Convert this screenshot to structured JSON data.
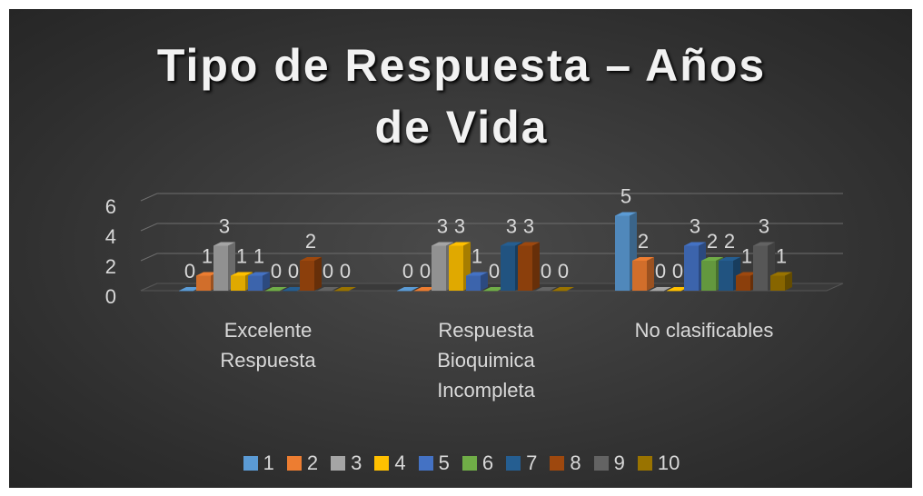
{
  "chart_data": {
    "type": "bar3d",
    "title": "Tipo de Respuesta – Años de Vida",
    "categories": [
      "Excelente Respuesta",
      "Respuesta Bioquimica Incompleta",
      "No clasificables"
    ],
    "series": [
      {
        "name": "1",
        "color": "#5b9bd5",
        "values": [
          0,
          0,
          5
        ]
      },
      {
        "name": "2",
        "color": "#ed7d31",
        "values": [
          1,
          0,
          2
        ]
      },
      {
        "name": "3",
        "color": "#a5a5a5",
        "values": [
          3,
          3,
          0
        ]
      },
      {
        "name": "4",
        "color": "#ffc000",
        "values": [
          1,
          3,
          0
        ]
      },
      {
        "name": "5",
        "color": "#4472c4",
        "values": [
          1,
          1,
          3
        ]
      },
      {
        "name": "6",
        "color": "#70ad47",
        "values": [
          0,
          0,
          2
        ]
      },
      {
        "name": "7",
        "color": "#255e91",
        "values": [
          0,
          3,
          2
        ]
      },
      {
        "name": "8",
        "color": "#9e480e",
        "values": [
          2,
          3,
          1
        ]
      },
      {
        "name": "9",
        "color": "#636363",
        "values": [
          0,
          0,
          3
        ]
      },
      {
        "name": "10",
        "color": "#997300",
        "values": [
          0,
          0,
          1
        ]
      }
    ],
    "ylim": [
      0,
      6
    ],
    "yticks": [
      0,
      2,
      4,
      6
    ],
    "grid": true,
    "legend": "bottom"
  }
}
